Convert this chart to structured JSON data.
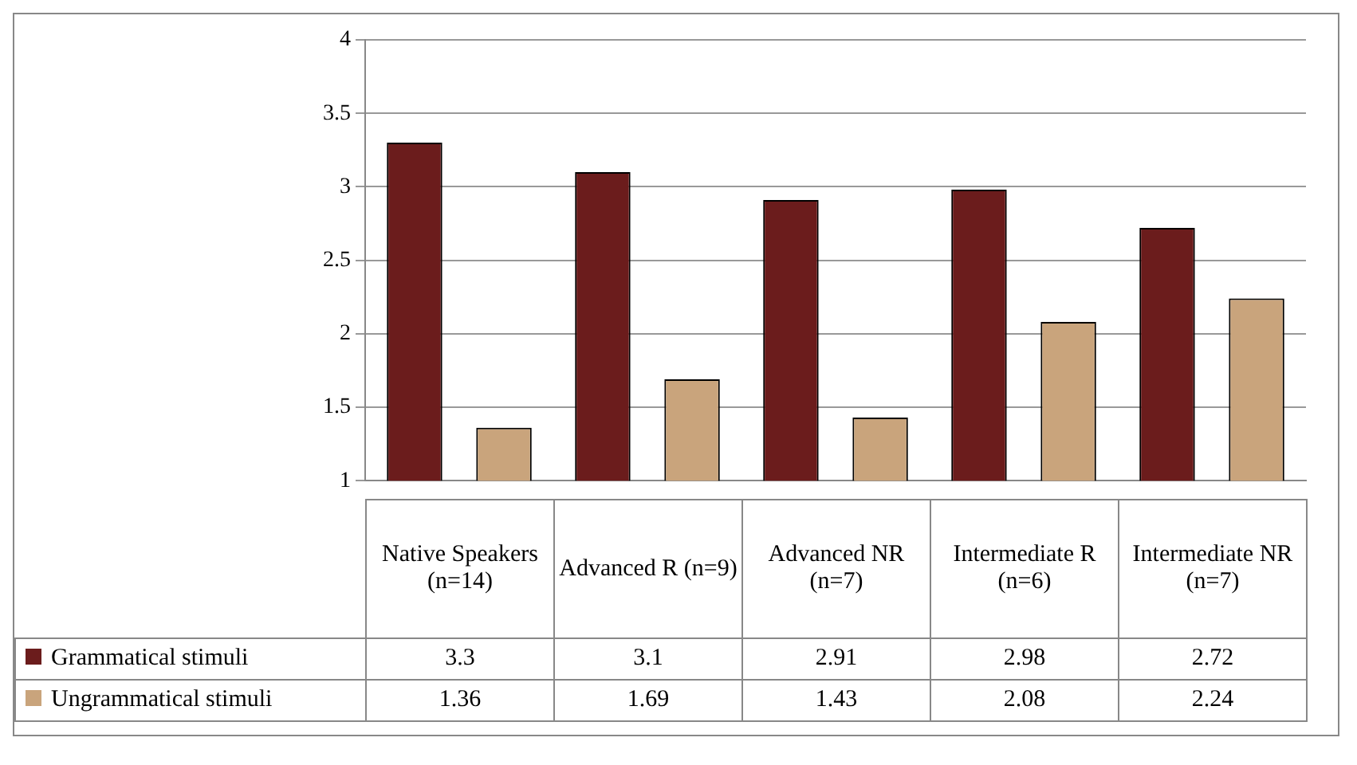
{
  "chart_data": {
    "type": "bar",
    "categories": [
      "Native Speakers (n=14)",
      "Advanced R (n=9)",
      "Advanced NR (n=7)",
      "Intermediate R (n=6)",
      "Intermediate NR (n=7)"
    ],
    "series": [
      {
        "name": "Grammatical stimuli",
        "color": "#6b1c1c",
        "values": [
          3.3,
          3.1,
          2.91,
          2.98,
          2.72
        ]
      },
      {
        "name": "Ungrammatical stimuli",
        "color": "#c9a47c",
        "values": [
          1.36,
          1.69,
          1.43,
          2.08,
          2.24
        ]
      }
    ],
    "ylim": [
      1,
      4
    ],
    "yticks": [
      1,
      1.5,
      2,
      2.5,
      3,
      3.5,
      4
    ],
    "grid": "y",
    "data_labels": true,
    "legend": "bottom left"
  }
}
